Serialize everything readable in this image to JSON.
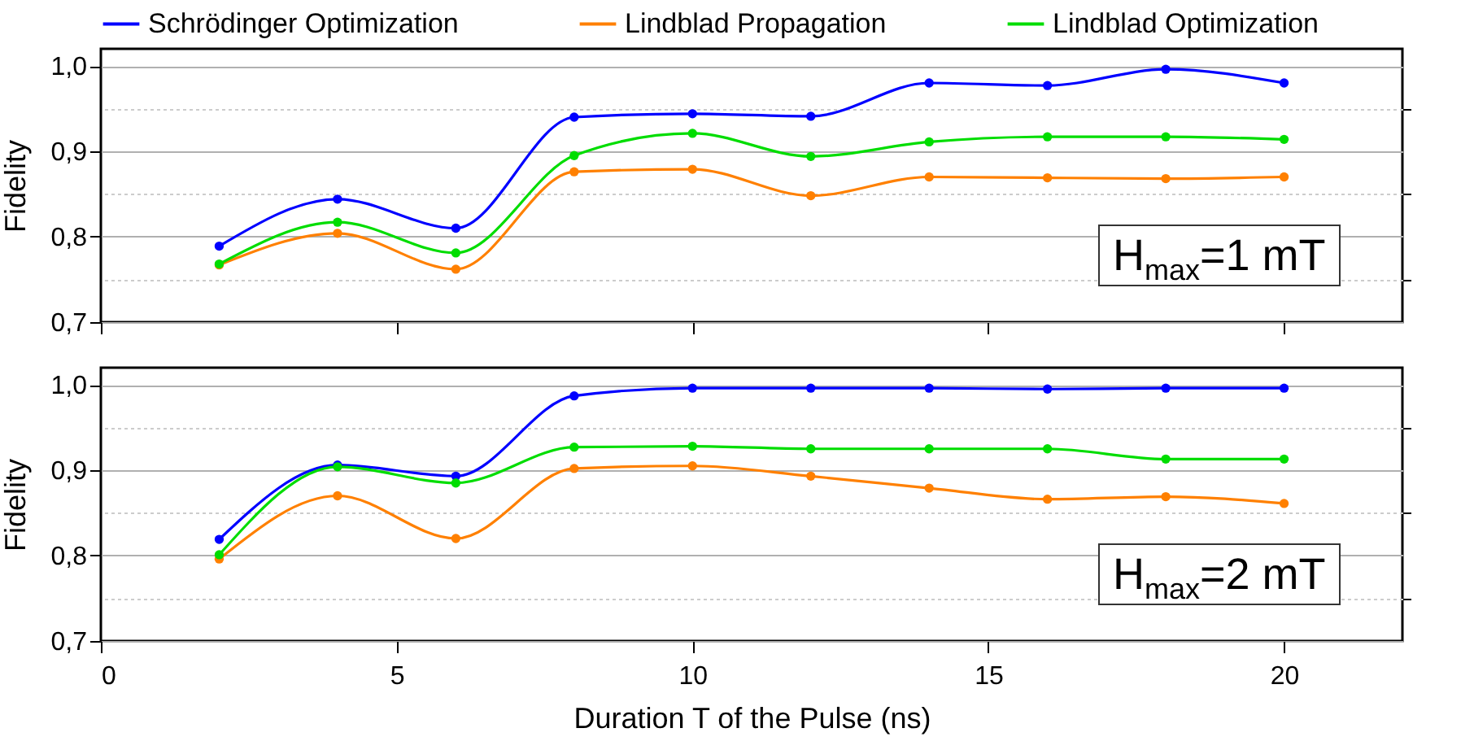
{
  "chart_data": [
    {
      "type": "line",
      "ylabel": "Fidelity",
      "x": [
        2,
        4,
        6,
        8,
        10,
        12,
        14,
        16,
        18,
        20
      ],
      "series": [
        {
          "name": "Schrödinger Optimization",
          "color": "#0000ff",
          "values": [
            0.789,
            0.844,
            0.81,
            0.94,
            0.944,
            0.941,
            0.98,
            0.977,
            0.996,
            0.98
          ]
        },
        {
          "name": "Lindblad Propagation",
          "color": "#ff8000",
          "values": [
            0.767,
            0.804,
            0.762,
            0.876,
            0.879,
            0.848,
            0.87,
            0.869,
            0.868,
            0.87
          ]
        },
        {
          "name": "Lindblad Optimization",
          "color": "#00dd00",
          "values": [
            0.768,
            0.817,
            0.781,
            0.895,
            0.921,
            0.894,
            0.911,
            0.917,
            0.917,
            0.914
          ]
        }
      ],
      "xlim": [
        0,
        22
      ],
      "xticks": [
        0,
        5,
        10,
        15,
        20
      ],
      "ylim": [
        0.7,
        1.02
      ],
      "yticks": [
        {
          "value": 0.7,
          "label": "0,7"
        },
        {
          "value": 0.8,
          "label": "0,8"
        },
        {
          "value": 0.9,
          "label": "0,9"
        },
        {
          "value": 1.0,
          "label": "1,0"
        }
      ],
      "tick_labels": "y",
      "grid": "y",
      "legend": "top",
      "marker": "circle",
      "line_style": "solid",
      "annotations": [
        "H$_{max}$=1 mT"
      ]
    },
    {
      "type": "line",
      "ylabel": "Fidelity",
      "xlabel": "Duration T of the Pulse (ns)",
      "x": [
        2,
        4,
        6,
        8,
        10,
        12,
        14,
        16,
        18,
        20
      ],
      "series": [
        {
          "name": "Schrödinger Optimization",
          "color": "#0000ff",
          "values": [
            0.819,
            0.906,
            0.893,
            0.987,
            0.996,
            0.996,
            0.996,
            0.995,
            0.996,
            0.996
          ]
        },
        {
          "name": "Lindblad Propagation",
          "color": "#ff8000",
          "values": [
            0.796,
            0.87,
            0.82,
            0.902,
            0.905,
            0.893,
            0.879,
            0.866,
            0.869,
            0.861
          ]
        },
        {
          "name": "Lindblad Optimization",
          "color": "#00dd00",
          "values": [
            0.801,
            0.904,
            0.885,
            0.927,
            0.928,
            0.925,
            0.925,
            0.925,
            0.913,
            0.913
          ]
        }
      ],
      "xlim": [
        0,
        22
      ],
      "xticks": [
        0,
        5,
        10,
        15,
        20
      ],
      "ylim": [
        0.7,
        1.02
      ],
      "yticks": [
        {
          "value": 0.7,
          "label": "0,7"
        },
        {
          "value": 0.8,
          "label": "0,8"
        },
        {
          "value": 0.9,
          "label": "0,9"
        },
        {
          "value": 1.0,
          "label": "1,0"
        }
      ],
      "grid": "y",
      "legend": false,
      "marker": "circle",
      "line_style": "solid",
      "annotations": [
        "H$_{max}$=2 mT"
      ]
    }
  ]
}
